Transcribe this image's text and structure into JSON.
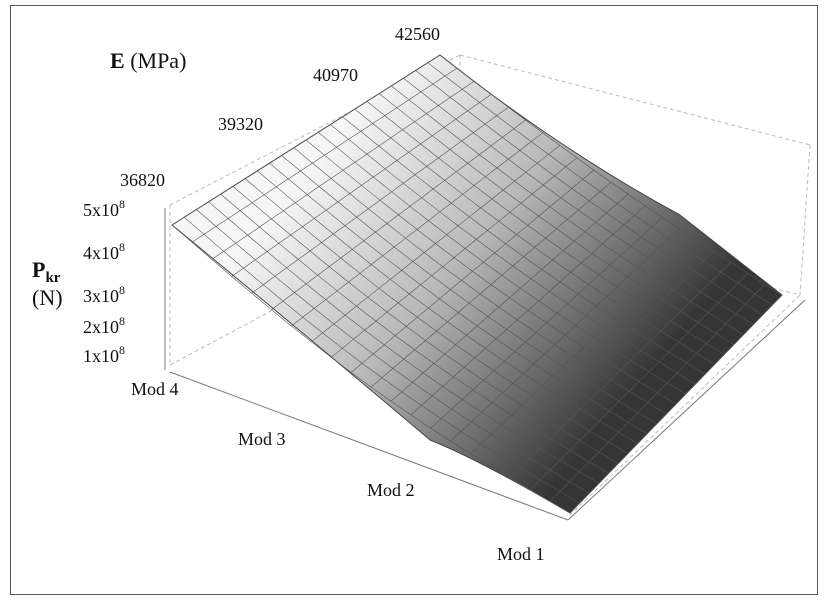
{
  "chart_data": {
    "type": "surface3d",
    "title": "",
    "elabel": {
      "main": "E",
      "unit": " (MPa)"
    },
    "zlabel": {
      "main": "P",
      "sub": "kr",
      "unit": "(N)"
    },
    "x_categories": [
      "Mod 1",
      "Mod 2",
      "Mod 3",
      "Mod 4"
    ],
    "e_ticks": [
      "36820",
      "39320",
      "40970",
      "42560"
    ],
    "e_range": [
      36820,
      42560
    ],
    "z_ticks": [
      {
        "mant": "1x10",
        "exp": "8",
        "value": 100000000
      },
      {
        "mant": "2x10",
        "exp": "8",
        "value": 200000000
      },
      {
        "mant": "3x10",
        "exp": "8",
        "value": 300000000
      },
      {
        "mant": "4x10",
        "exp": "8",
        "value": 400000000
      },
      {
        "mant": "5x10",
        "exp": "8",
        "value": 500000000
      }
    ],
    "zlim": [
      0,
      500000000
    ],
    "corner_values": {
      "mod4_e36820": 445000000,
      "mod4_e42560": 520000000,
      "mod1_e36820": 95000000,
      "mod1_e42560": 125000000
    },
    "colors": {
      "high": "#f2f2f2",
      "low": "#3a3a3a",
      "mesh": "#555555",
      "box": "#bbbbbb"
    }
  }
}
